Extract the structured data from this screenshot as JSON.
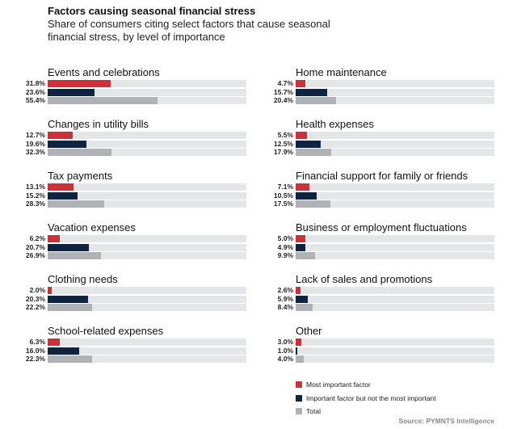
{
  "chart_data": {
    "type": "bar",
    "title": "Factors causing seasonal financial stress",
    "subtitle": "Share of consumers citing select factors that cause seasonal financial stress, by level of importance",
    "xlim": [
      0,
      100
    ],
    "legend_placement": "bottom-right",
    "series": [
      {
        "name": "Most important factor",
        "color": "#cc3038"
      },
      {
        "name": "Important factor but not the most important",
        "color": "#0f2440"
      },
      {
        "name": "Total",
        "color": "#b0b2b5"
      }
    ],
    "categories": [
      {
        "name": "Events and celebrations",
        "values": [
          31.8,
          23.6,
          55.4
        ]
      },
      {
        "name": "Changes in utility bills",
        "values": [
          12.7,
          19.6,
          32.3
        ]
      },
      {
        "name": "Tax payments",
        "values": [
          13.1,
          15.2,
          28.3
        ]
      },
      {
        "name": "Vacation expenses",
        "values": [
          6.2,
          20.7,
          26.9
        ]
      },
      {
        "name": "Clothing needs",
        "values": [
          2.0,
          20.3,
          22.2
        ]
      },
      {
        "name": "School-related expenses",
        "values": [
          6.3,
          16.0,
          22.3
        ]
      },
      {
        "name": "Home maintenance",
        "values": [
          4.7,
          15.7,
          20.4
        ]
      },
      {
        "name": "Health expenses",
        "values": [
          5.5,
          12.5,
          17.9
        ]
      },
      {
        "name": "Financial support for family or friends",
        "values": [
          7.1,
          10.5,
          17.5
        ]
      },
      {
        "name": "Business or employment fluctuations",
        "values": [
          5.0,
          4.9,
          9.9
        ]
      },
      {
        "name": "Lack of sales and promotions",
        "values": [
          2.6,
          5.9,
          8.4
        ]
      },
      {
        "name": "Other",
        "values": [
          3.0,
          1.0,
          4.0
        ]
      }
    ],
    "source": "Source: PYMNTS Intelligence"
  }
}
